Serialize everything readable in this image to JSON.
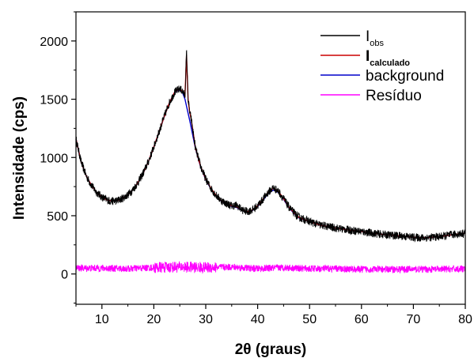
{
  "chart_data": {
    "type": "line",
    "title": "",
    "xlabel": "2θ (graus)",
    "ylabel": "Intensidade (cps)",
    "xlim": [
      5,
      80
    ],
    "ylim": [
      -260,
      2250
    ],
    "xticks": [
      10,
      20,
      30,
      40,
      50,
      60,
      70,
      80
    ],
    "yticks": [
      0,
      500,
      1000,
      1500,
      2000
    ],
    "grid": false,
    "legend_position": "top-right",
    "legend": [
      {
        "label": "I",
        "sub": "obs",
        "bold": false,
        "color": "#000000"
      },
      {
        "label": "I",
        "sub": "calculado",
        "bold": true,
        "color": "#cc0000"
      },
      {
        "label": "background",
        "sub": "",
        "bold": false,
        "color": "#0000cc"
      },
      {
        "label": "Resíduo",
        "sub": "",
        "bold": false,
        "color": "#ff00ff"
      }
    ],
    "series": [
      {
        "name": "background",
        "color": "#0000cc",
        "x": [
          5,
          6,
          7,
          8,
          9,
          10,
          11,
          12,
          13,
          14,
          15,
          16,
          17,
          18,
          19,
          20,
          21,
          22,
          23,
          24,
          25,
          25.5,
          26,
          27,
          28,
          29,
          30,
          31,
          32,
          33,
          34,
          35,
          36,
          37,
          38,
          39,
          40,
          41,
          42,
          43,
          44,
          45,
          46,
          47,
          48,
          50,
          52,
          55,
          58,
          60,
          62,
          65,
          68,
          70,
          72,
          75,
          78,
          80
        ],
        "y": [
          1160,
          960,
          840,
          760,
          700,
          660,
          635,
          625,
          630,
          650,
          680,
          725,
          790,
          870,
          970,
          1090,
          1220,
          1350,
          1470,
          1560,
          1580,
          1560,
          1500,
          1300,
          1080,
          920,
          810,
          730,
          670,
          625,
          600,
          580,
          570,
          545,
          530,
          545,
          580,
          630,
          690,
          720,
          700,
          640,
          570,
          520,
          480,
          450,
          420,
          395,
          375,
          365,
          350,
          335,
          325,
          315,
          310,
          320,
          340,
          350
        ]
      },
      {
        "name": "I",
        "color": "#cc0000",
        "x": [
          5,
          6,
          7,
          8,
          9,
          10,
          11,
          12,
          13,
          14,
          15,
          16,
          17,
          18,
          19,
          20,
          21,
          22,
          23,
          24,
          25,
          25.5,
          26,
          26.3,
          26.6,
          26.9,
          27.2,
          28,
          29,
          30,
          31,
          32,
          33,
          34,
          35,
          36,
          37,
          38,
          39,
          40,
          41,
          42,
          43,
          44,
          45,
          46,
          47,
          48,
          50,
          52,
          55,
          58,
          60,
          62,
          65,
          68,
          70,
          72,
          75,
          78,
          80
        ],
        "y": [
          1160,
          960,
          840,
          760,
          700,
          660,
          635,
          625,
          630,
          650,
          680,
          725,
          790,
          870,
          970,
          1090,
          1220,
          1350,
          1470,
          1560,
          1590,
          1570,
          1530,
          1880,
          1500,
          1390,
          1330,
          1085,
          925,
          815,
          735,
          675,
          630,
          605,
          585,
          575,
          550,
          535,
          550,
          585,
          640,
          700,
          735,
          710,
          645,
          575,
          525,
          485,
          450,
          420,
          395,
          375,
          365,
          350,
          335,
          325,
          315,
          310,
          320,
          340,
          350
        ]
      },
      {
        "name": "I",
        "color": "#000000",
        "x": [
          5,
          6,
          7,
          8,
          9,
          10,
          11,
          12,
          13,
          14,
          15,
          16,
          17,
          18,
          19,
          20,
          21,
          22,
          23,
          24,
          25,
          25.5,
          26,
          26.3,
          26.6,
          26.9,
          27.2,
          28,
          29,
          30,
          31,
          32,
          33,
          34,
          35,
          36,
          37,
          38,
          39,
          40,
          41,
          42,
          43,
          44,
          45,
          46,
          47,
          48,
          50,
          52,
          55,
          58,
          60,
          62,
          65,
          68,
          70,
          72,
          75,
          78,
          80
        ],
        "y": [
          1160,
          960,
          840,
          760,
          700,
          660,
          635,
          625,
          630,
          650,
          680,
          725,
          790,
          870,
          970,
          1090,
          1220,
          1350,
          1470,
          1560,
          1590,
          1570,
          1530,
          1920,
          1500,
          1390,
          1330,
          1085,
          925,
          815,
          735,
          675,
          630,
          605,
          585,
          590,
          550,
          535,
          550,
          585,
          640,
          700,
          740,
          710,
          645,
          575,
          525,
          485,
          450,
          420,
          395,
          375,
          365,
          350,
          335,
          325,
          315,
          310,
          320,
          340,
          350
        ]
      },
      {
        "name": "Resíduo",
        "color": "#ff00ff",
        "x": [
          5,
          10,
          15,
          20,
          25,
          30,
          35,
          40,
          45,
          50,
          55,
          60,
          65,
          70,
          75,
          80
        ],
        "y": [
          50,
          50,
          45,
          55,
          60,
          55,
          60,
          45,
          55,
          45,
          45,
          40,
          40,
          40,
          40,
          45
        ]
      }
    ]
  }
}
